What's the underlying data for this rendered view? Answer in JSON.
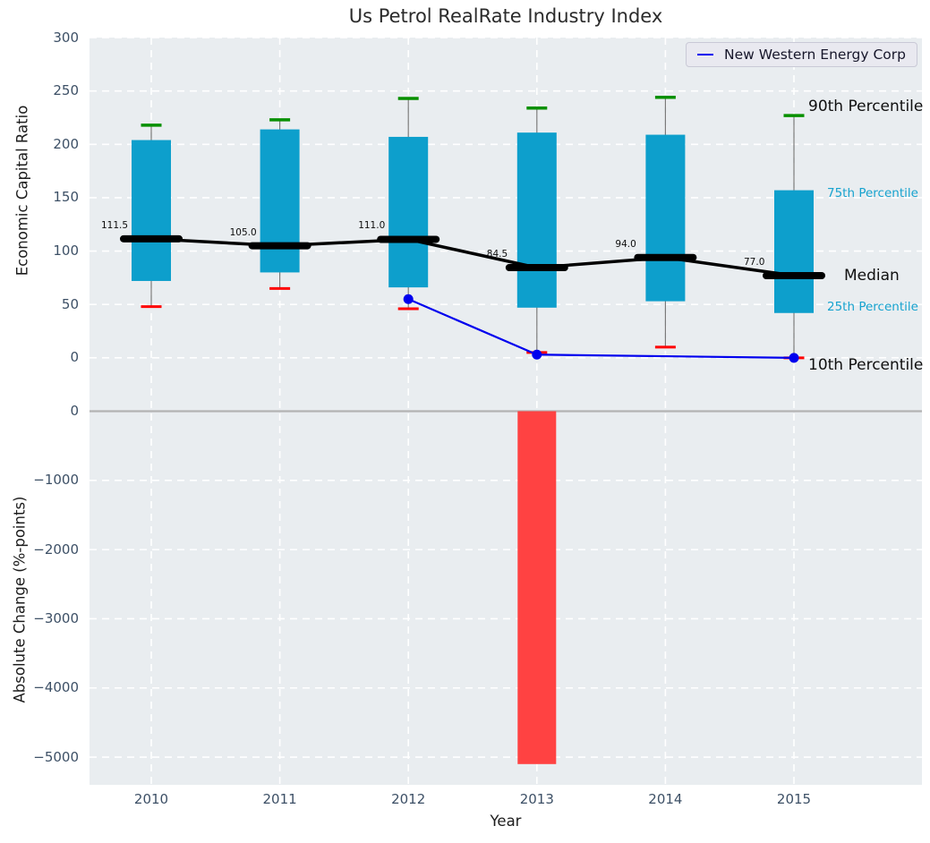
{
  "title": "Us Petrol RealRate Industry Index",
  "legend": {
    "label": "New Western Energy Corp"
  },
  "annotations": {
    "p90": "90th Percentile",
    "p75": "75th Percentile",
    "median": "Median",
    "p25": "25th Percentile",
    "p10": "10th Percentile"
  },
  "colors": {
    "box_fill": "#0d9fcc",
    "percentile_text": "#17a3cf",
    "cap_90th": "#089000",
    "cap_10th": "#ff0000",
    "median_line": "#000000",
    "company_line": "#0000ee",
    "bar_negative": "#ff4242",
    "plot_bg": "#e9edf0",
    "grid": "#ffffff",
    "zero_line": "#b3b3b3",
    "whisker": "#7a7a7a",
    "tick_text": "#3d5066"
  },
  "chart_data": [
    {
      "type": "boxplot",
      "title": "Us Petrol RealRate Industry Index",
      "ylabel": "Economic Capital Ratio",
      "ylim": [
        -50,
        300
      ],
      "yticks": [
        0,
        50,
        100,
        150,
        200,
        250,
        300
      ],
      "ytick_labels": [
        "0",
        "50",
        "100",
        "150",
        "200",
        "250",
        "300"
      ],
      "categories": [
        "2010",
        "2011",
        "2012",
        "2013",
        "2014",
        "2015"
      ],
      "grid": true,
      "legend_position": "upper right",
      "percentiles": {
        "p90": [
          218,
          223,
          243,
          234,
          244,
          227
        ],
        "p75": [
          204,
          214,
          207,
          211,
          209,
          157
        ],
        "median": [
          111.5,
          105.0,
          111.0,
          84.5,
          94.0,
          77.0
        ],
        "p25": [
          72,
          80,
          66,
          47,
          53,
          42
        ],
        "p10": [
          48,
          65,
          46,
          5,
          10,
          0
        ]
      },
      "median_labels": [
        "111.5",
        "105.0",
        "111.0",
        "84.5",
        "94.0",
        "77.0"
      ],
      "series": [
        {
          "name": "New Western Energy Corp",
          "type": "line",
          "points": [
            {
              "x": "2012",
              "y": 55
            },
            {
              "x": "2013",
              "y": 3
            },
            {
              "x": "2015",
              "y": 0
            }
          ]
        }
      ]
    },
    {
      "type": "bar",
      "xlabel": "Year",
      "ylabel": "Absolute Change (%-points)",
      "ylim": [
        -5400,
        0
      ],
      "yticks": [
        0,
        -1000,
        -2000,
        -3000,
        -4000,
        -5000
      ],
      "ytick_labels": [
        "0",
        "−1000",
        "−2000",
        "−3000",
        "−4000",
        "−5000"
      ],
      "categories": [
        "2010",
        "2011",
        "2012",
        "2013",
        "2014",
        "2015"
      ],
      "values": [
        0,
        0,
        0,
        -5100,
        0,
        0
      ],
      "grid": true
    }
  ]
}
